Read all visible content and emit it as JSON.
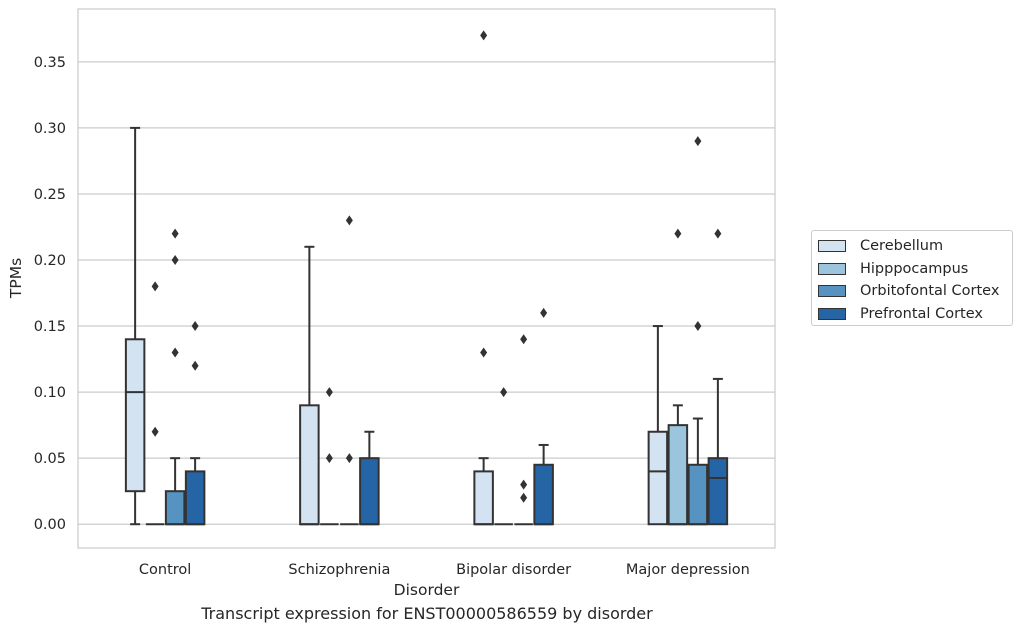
{
  "chart_data": {
    "type": "box",
    "title": "",
    "caption": "Transcript expression for ENST00000586559 by disorder",
    "xlabel": "Disorder",
    "ylabel": "TPMs",
    "ylim": [
      -0.018,
      0.39
    ],
    "yticks": [
      "0.00",
      "0.05",
      "0.10",
      "0.15",
      "0.20",
      "0.25",
      "0.30",
      "0.35"
    ],
    "ytick_values": [
      0,
      0.05,
      0.1,
      0.15,
      0.2,
      0.25,
      0.3,
      0.35
    ],
    "categories": [
      "Control",
      "Schizophrenia",
      "Bipolar disorder",
      "Major depression"
    ],
    "grid": "horizontal",
    "legend_position": "right",
    "series": [
      {
        "name": "Cerebellum",
        "color": "#d3e3f2",
        "boxes": [
          {
            "whislo": 0,
            "q1": 0.025,
            "med": 0.1,
            "q3": 0.14,
            "whishi": 0.3,
            "fliers": []
          },
          {
            "whislo": 0,
            "q1": 0,
            "med": 0,
            "q3": 0.09,
            "whishi": 0.21,
            "fliers": []
          },
          {
            "whislo": 0,
            "q1": 0,
            "med": 0,
            "q3": 0.04,
            "whishi": 0.05,
            "fliers": [
              0.13,
              0.37
            ]
          },
          {
            "whislo": 0,
            "q1": 0,
            "med": 0.04,
            "q3": 0.07,
            "whishi": 0.15,
            "fliers": []
          }
        ]
      },
      {
        "name": "Hipppocampus",
        "color": "#9bc4dd",
        "boxes": [
          {
            "whislo": 0,
            "q1": 0,
            "med": 0,
            "q3": 0,
            "whishi": 0,
            "fliers": [
              0.07,
              0.18
            ]
          },
          {
            "whislo": 0,
            "q1": 0,
            "med": 0,
            "q3": 0,
            "whishi": 0,
            "fliers": [
              0.05,
              0.1
            ]
          },
          {
            "whislo": 0,
            "q1": 0,
            "med": 0,
            "q3": 0,
            "whishi": 0,
            "fliers": [
              0.1
            ]
          },
          {
            "whislo": 0,
            "q1": 0,
            "med": 0,
            "q3": 0.075,
            "whishi": 0.09,
            "fliers": [
              0.22
            ]
          }
        ]
      },
      {
        "name": "Orbitofontal Cortex",
        "color": "#5693c1",
        "boxes": [
          {
            "whislo": 0,
            "q1": 0,
            "med": 0,
            "q3": 0.025,
            "whishi": 0.05,
            "fliers": [
              0.13,
              0.2,
              0.22
            ]
          },
          {
            "whislo": 0,
            "q1": 0,
            "med": 0,
            "q3": 0,
            "whishi": 0,
            "fliers": [
              0.05,
              0.23
            ]
          },
          {
            "whislo": 0,
            "q1": 0,
            "med": 0,
            "q3": 0,
            "whishi": 0,
            "fliers": [
              0.02,
              0.03,
              0.14
            ]
          },
          {
            "whislo": 0,
            "q1": 0,
            "med": 0,
            "q3": 0.045,
            "whishi": 0.08,
            "fliers": [
              0.15,
              0.29
            ]
          }
        ]
      },
      {
        "name": "Prefrontal Cortex",
        "color": "#2565a6",
        "boxes": [
          {
            "whislo": 0,
            "q1": 0,
            "med": 0,
            "q3": 0.04,
            "whishi": 0.05,
            "fliers": [
              0.12,
              0.15
            ]
          },
          {
            "whislo": 0,
            "q1": 0,
            "med": 0,
            "q3": 0.05,
            "whishi": 0.07,
            "fliers": []
          },
          {
            "whislo": 0,
            "q1": 0,
            "med": 0,
            "q3": 0.045,
            "whishi": 0.06,
            "fliers": [
              0.16
            ]
          },
          {
            "whislo": 0,
            "q1": 0,
            "med": 0.035,
            "q3": 0.05,
            "whishi": 0.11,
            "fliers": [
              0.22
            ]
          }
        ]
      }
    ]
  }
}
